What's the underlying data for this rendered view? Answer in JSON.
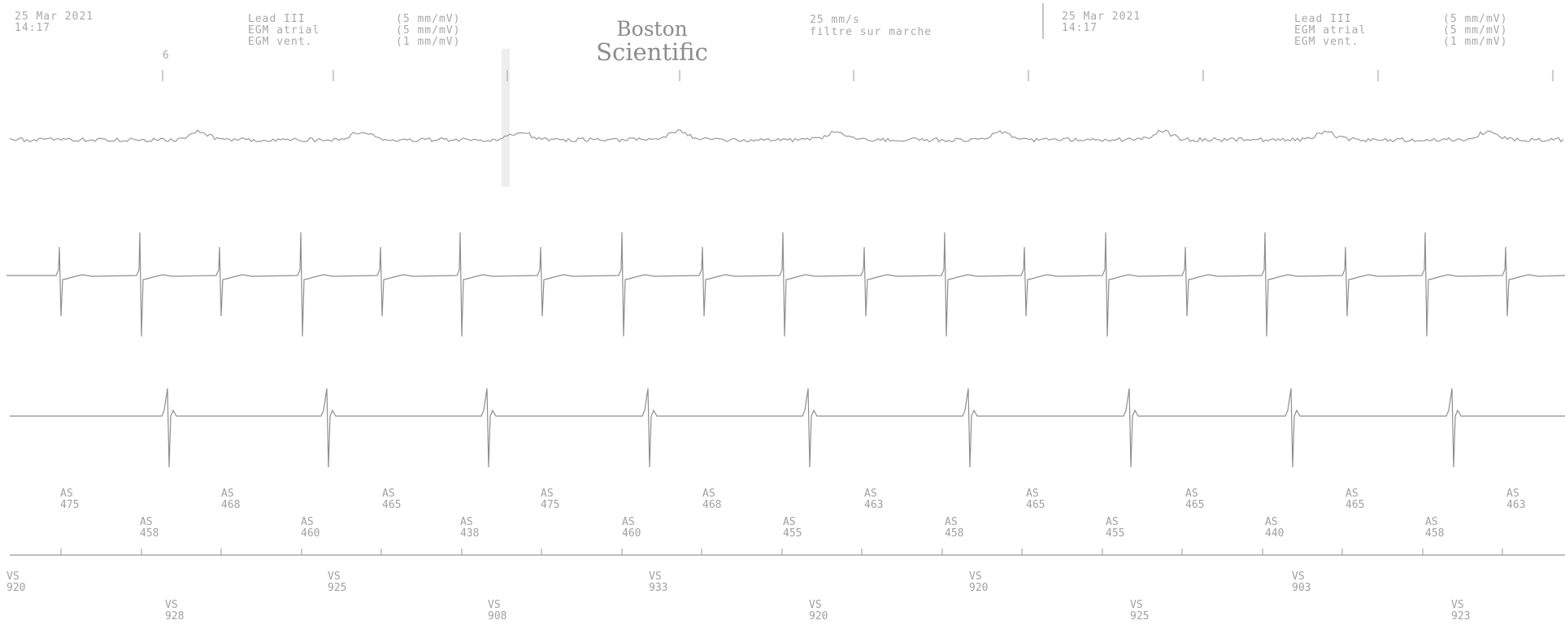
{
  "left_panel": {
    "date": "25 Mar 2021",
    "time": "14:17",
    "leads": [
      {
        "name": "Lead III",
        "scale": "(5 mm/mV)"
      },
      {
        "name": "EGM atrial",
        "scale": "(5 mm/mV)"
      },
      {
        "name": "EGM vent.",
        "scale": "(1 mm/mV)"
      }
    ],
    "event_mark": "6"
  },
  "logo": {
    "line1": "Boston",
    "line2": "Scientific"
  },
  "speed": "25 mm/s",
  "filter": "filtre sur marche",
  "right_panel": {
    "date": "25 Mar 2021",
    "time": "14:17",
    "leads": [
      {
        "name": "Lead III",
        "scale": "(5 mm/mV)"
      },
      {
        "name": "EGM atrial",
        "scale": "(5 mm/mV)"
      },
      {
        "name": "EGM vent.",
        "scale": "(1 mm/mV)"
      }
    ]
  },
  "colors": {
    "trace": "#9a9a9a",
    "text": "#a8a8a8",
    "background": "#ffffff"
  },
  "markers": {
    "atrial_upper": [
      {
        "label": "AS",
        "value": "475"
      },
      {
        "label": "AS",
        "value": "468"
      },
      {
        "label": "AS",
        "value": "465"
      },
      {
        "label": "AS",
        "value": "475"
      },
      {
        "label": "AS",
        "value": "468"
      },
      {
        "label": "AS",
        "value": "463"
      },
      {
        "label": "AS",
        "value": "465"
      },
      {
        "label": "AS",
        "value": "465"
      },
      {
        "label": "AS",
        "value": "465"
      },
      {
        "label": "AS",
        "value": "463"
      }
    ],
    "atrial_lower": [
      {
        "label": "AS",
        "value": "458"
      },
      {
        "label": "AS",
        "value": "460"
      },
      {
        "label": "AS",
        "value": "438"
      },
      {
        "label": "AS",
        "value": "460"
      },
      {
        "label": "AS",
        "value": "455"
      },
      {
        "label": "AS",
        "value": "458"
      },
      {
        "label": "AS",
        "value": "455"
      },
      {
        "label": "AS",
        "value": "440"
      },
      {
        "label": "AS",
        "value": "458"
      }
    ],
    "vent_upper": [
      {
        "label": "VS",
        "value": "920"
      },
      {
        "label": "VS",
        "value": "925"
      },
      {
        "label": "VS",
        "value": "933"
      },
      {
        "label": "VS",
        "value": "920"
      },
      {
        "label": "VS",
        "value": "903"
      }
    ],
    "vent_lower": [
      {
        "label": "VS",
        "value": "928"
      },
      {
        "label": "VS",
        "value": "908"
      },
      {
        "label": "VS",
        "value": "920"
      },
      {
        "label": "VS",
        "value": "925"
      },
      {
        "label": "VS",
        "value": "923"
      }
    ]
  }
}
